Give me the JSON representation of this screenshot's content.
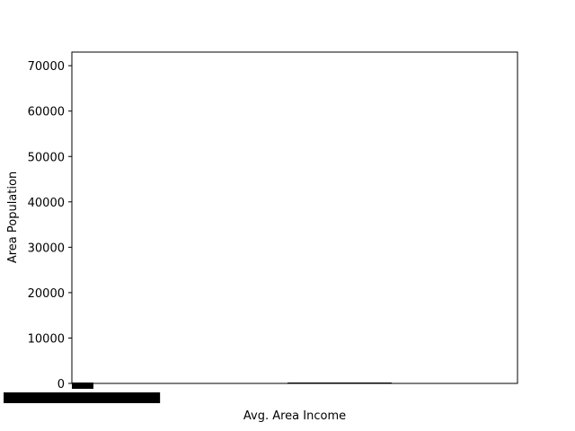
{
  "chart_data": {
    "type": "bar",
    "title": "",
    "xlabel": "Avg. Area Income",
    "ylabel": "Area Population",
    "ylim": [
      0,
      73000
    ],
    "yticks": [
      0,
      10000,
      20000,
      30000,
      40000,
      50000,
      60000,
      70000
    ],
    "grid": false,
    "x_tick_labels_note_overlapping": true,
    "series": [
      {
        "values": [
          180,
          120,
          60,
          40,
          30,
          20
        ]
      }
    ],
    "colors": {
      "bar": "#1f77b4",
      "axis": "#000000",
      "background": "#ffffff"
    }
  }
}
